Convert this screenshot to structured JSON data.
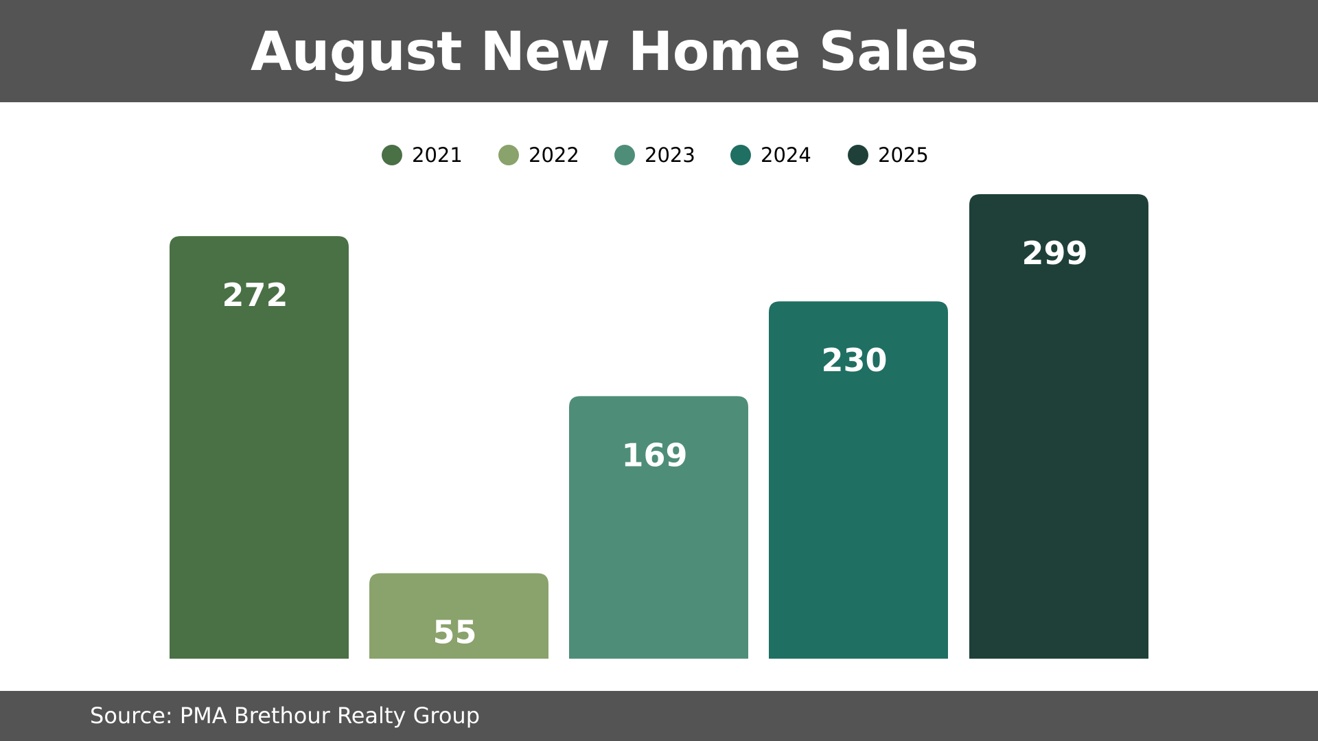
{
  "chart_data": {
    "type": "bar",
    "title": "August New Home Sales",
    "categories": [
      "2021",
      "2022",
      "2023",
      "2024",
      "2025"
    ],
    "values": [
      272,
      55,
      169,
      230,
      299
    ],
    "colors": [
      "#4a7045",
      "#8aa26b",
      "#4e8e78",
      "#1f6f62",
      "#1e4038"
    ],
    "legend": [
      "2021",
      "2022",
      "2023",
      "2024",
      "2025"
    ],
    "legend_placement": "top-center",
    "ylim": [
      0,
      299
    ],
    "grid": false,
    "data_labels": [
      "272",
      "55",
      "169",
      "230",
      "299"
    ],
    "colors_ui": {
      "header": "#545454",
      "footer": "#545454",
      "label_text": "#ffffff"
    }
  },
  "footer": {
    "source": "Source: PMA Brethour Realty Group"
  }
}
